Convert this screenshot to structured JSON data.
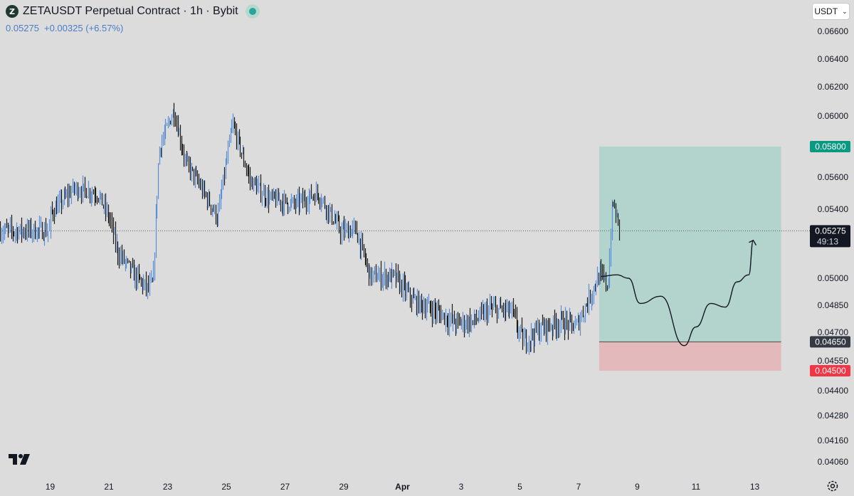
{
  "symbol": {
    "icon_label": "Z",
    "title": "ZETAUSDT Perpetual Contract · 1h · Bybit",
    "price": "0.05275",
    "change": "+0.00325 (+6.57%)"
  },
  "currency_button": {
    "label": "USDT"
  },
  "icons": {
    "symbol": "zeta-logo-icon",
    "status": "market-open-dot-icon",
    "dropdown": "chevron-down-icon",
    "brand": "tradingview-logo-icon",
    "settings": "gear-icon"
  },
  "colors": {
    "background": "#dcdcdc",
    "up_candle": "#5b8fd6",
    "down_candle": "#1b1b1b",
    "profit_zone": "#b3d4cd",
    "loss_zone": "#e3b9bc",
    "target_badge": "#089981",
    "stop_badge": "#f23645",
    "entry_badge": "#363a45",
    "current_badge": "#131722"
  },
  "chart_data": {
    "type": "candlestick",
    "timeframe": "1h",
    "x_axis": {
      "tick_labels": [
        "19",
        "21",
        "23",
        "25",
        "27",
        "29",
        "Apr",
        "3",
        "5",
        "7",
        "9",
        "11",
        "13"
      ]
    },
    "y_axis": {
      "tick_labels": [
        "0.06600",
        "0.06400",
        "0.06200",
        "0.06000",
        "0.05600",
        "0.05400",
        "0.05000",
        "0.04850",
        "0.04700",
        "0.04550",
        "0.04400",
        "0.04280",
        "0.04160",
        "0.04060"
      ]
    },
    "price_path": [
      {
        "t": 0.0,
        "p": 0.0537
      },
      {
        "t": 0.8,
        "p": 0.0553
      },
      {
        "t": 1.6,
        "p": 0.055
      },
      {
        "t": 2.0,
        "p": 0.0535
      },
      {
        "t": 2.3,
        "p": 0.0515
      },
      {
        "t": 2.8,
        "p": 0.0503
      },
      {
        "t": 3.3,
        "p": 0.0494
      },
      {
        "t": 3.5,
        "p": 0.0497
      },
      {
        "t": 3.7,
        "p": 0.0578
      },
      {
        "t": 4.2,
        "p": 0.0604
      },
      {
        "t": 4.6,
        "p": 0.057
      },
      {
        "t": 5.3,
        "p": 0.0548
      },
      {
        "t": 5.7,
        "p": 0.0535
      },
      {
        "t": 6.2,
        "p": 0.0595
      },
      {
        "t": 6.8,
        "p": 0.0558
      },
      {
        "t": 7.4,
        "p": 0.0547
      },
      {
        "t": 8.3,
        "p": 0.0543
      },
      {
        "t": 9.1,
        "p": 0.055
      },
      {
        "t": 9.9,
        "p": 0.0527
      },
      {
        "t": 10.4,
        "p": 0.0528
      },
      {
        "t": 10.9,
        "p": 0.0501
      },
      {
        "t": 11.7,
        "p": 0.0501
      },
      {
        "t": 12.4,
        "p": 0.0487
      },
      {
        "t": 13.1,
        "p": 0.0482
      },
      {
        "t": 13.8,
        "p": 0.0475
      },
      {
        "t": 14.4,
        "p": 0.0476
      },
      {
        "t": 15.0,
        "p": 0.0483
      },
      {
        "t": 15.7,
        "p": 0.0482
      },
      {
        "t": 16.1,
        "p": 0.0465
      },
      {
        "t": 16.7,
        "p": 0.0472
      },
      {
        "t": 17.4,
        "p": 0.0476
      },
      {
        "t": 17.9,
        "p": 0.0473
      },
      {
        "t": 18.3,
        "p": 0.0487
      },
      {
        "t": 18.7,
        "p": 0.0502
      },
      {
        "t": 19.0,
        "p": 0.0496
      },
      {
        "t": 19.15,
        "p": 0.0545
      },
      {
        "t": 19.4,
        "p": 0.05275
      }
    ],
    "current_price": {
      "value": 0.05275,
      "label": "0.05275",
      "countdown": "49:13"
    },
    "long_position": {
      "start_t": 18.7,
      "end_t": 24.9,
      "entry": {
        "value": 0.0465,
        "label": "0.04650"
      },
      "target": {
        "value": 0.058,
        "label": "0.05800"
      },
      "stop": {
        "value": 0.045,
        "label": "0.04500"
      }
    },
    "projection_path": [
      {
        "t": 18.75,
        "p": 0.0501
      },
      {
        "t": 19.3,
        "p": 0.0502
      },
      {
        "t": 19.7,
        "p": 0.05
      },
      {
        "t": 20.1,
        "p": 0.0486
      },
      {
        "t": 20.8,
        "p": 0.049
      },
      {
        "t": 21.6,
        "p": 0.0463
      },
      {
        "t": 22.0,
        "p": 0.0473
      },
      {
        "t": 22.5,
        "p": 0.0486
      },
      {
        "t": 23.0,
        "p": 0.0484
      },
      {
        "t": 23.4,
        "p": 0.0498
      },
      {
        "t": 23.8,
        "p": 0.0502
      },
      {
        "t": 23.95,
        "p": 0.0522
      }
    ]
  }
}
